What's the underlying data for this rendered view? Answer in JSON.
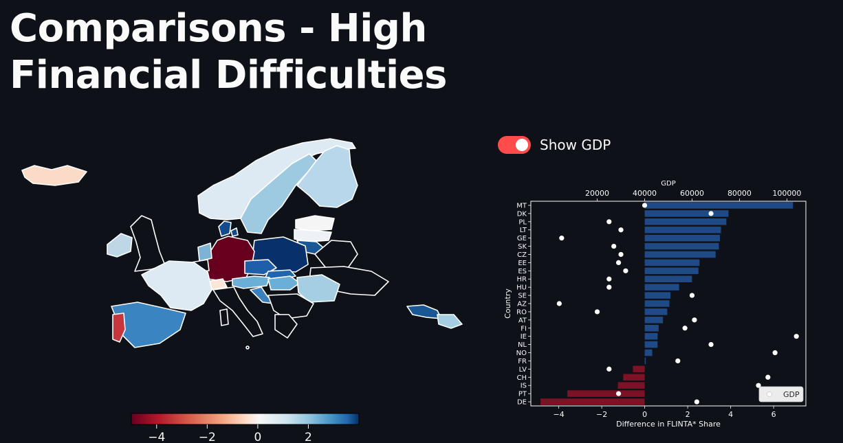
{
  "page": {
    "title": "Comparisons - High Financial Difficulties"
  },
  "toggle": {
    "label": "Show GDP",
    "checked": true,
    "color": "#ff4b4b"
  },
  "map": {
    "colormap": "RdBu",
    "colorbar": {
      "min": -5,
      "max": 4,
      "ticks": [
        -4,
        -2,
        0,
        2
      ]
    }
  },
  "chart_data": {
    "type": "bar",
    "orientation": "horizontal",
    "ylabel": "Country",
    "xlabel": "Difference in FLINTA* Share",
    "x2label": "GDP",
    "xlim": [
      -5.3,
      7.5
    ],
    "xticks": [
      -4,
      -2,
      0,
      2,
      4,
      6
    ],
    "x2lim": [
      -8000,
      108000
    ],
    "x2ticks": [
      20000,
      40000,
      60000,
      80000,
      100000
    ],
    "legend": "GDP",
    "legend_position": "lower-right",
    "colors": {
      "positive": "#1f4a86",
      "negative": "#7d1126",
      "points": "#ffffff"
    },
    "categories": [
      "MT",
      "DK",
      "PL",
      "LT",
      "GE",
      "SK",
      "CZ",
      "EE",
      "ES",
      "HR",
      "HU",
      "SE",
      "AZ",
      "RO",
      "AT",
      "FI",
      "IE",
      "NL",
      "NO",
      "FR",
      "LV",
      "CH",
      "IS",
      "PT",
      "DE"
    ],
    "values": [
      6.9,
      3.9,
      3.8,
      3.55,
      3.5,
      3.45,
      3.3,
      2.55,
      2.5,
      2.2,
      1.6,
      1.2,
      1.15,
      1.05,
      0.85,
      0.65,
      0.6,
      0.6,
      0.35,
      0.05,
      -0.55,
      -1.0,
      -1.25,
      -3.6,
      -4.85
    ],
    "gdp": [
      40000,
      68000,
      25000,
      30000,
      5000,
      27000,
      30000,
      29000,
      32000,
      25000,
      25000,
      60000,
      4000,
      20000,
      61000,
      57000,
      104000,
      68000,
      95000,
      54000,
      25000,
      92000,
      88000,
      29000,
      62000
    ]
  }
}
